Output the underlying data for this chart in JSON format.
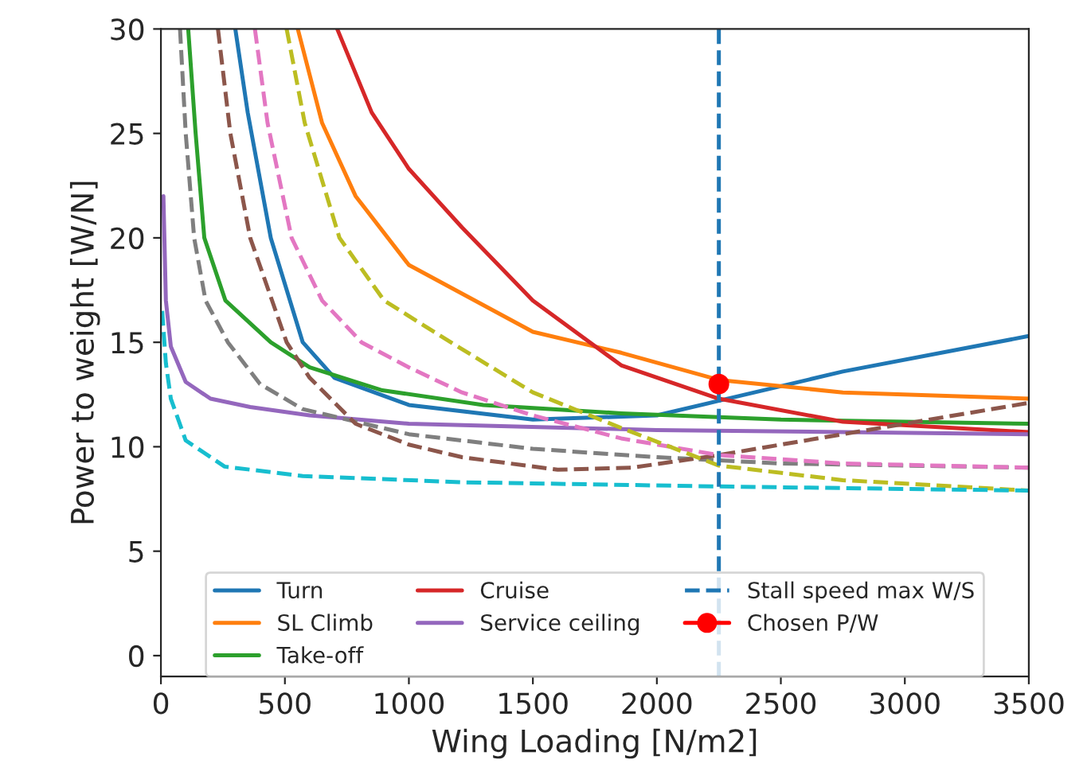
{
  "chart_data": {
    "type": "line",
    "xlabel": "Wing Loading [N/m2]",
    "ylabel": "Power to weight [W/N]",
    "xlim": [
      0,
      3500
    ],
    "xticks": [
      0,
      500,
      1000,
      1500,
      2000,
      2500,
      3000,
      3500
    ],
    "ylim": [
      -1,
      30
    ],
    "yticks": [
      0,
      5,
      10,
      15,
      20,
      25,
      30
    ],
    "grid": false,
    "legend": "bottom",
    "marker": "none",
    "series": [
      {
        "name": "Turn",
        "color": "#1f77b4",
        "line_style": "solid",
        "x": [
          300,
          350,
          443,
          572,
          700,
          1000,
          1500,
          2000,
          2250,
          2750,
          3500
        ],
        "values": [
          30,
          26,
          20,
          15,
          13.3,
          12,
          11.3,
          11.5,
          12.2,
          13.6,
          15.3
        ]
      },
      {
        "name": "SL Climb",
        "color": "#ff7f0e",
        "line_style": "solid",
        "x": [
          552,
          650,
          785,
          1000,
          1500,
          1856,
          2250,
          2750,
          3500
        ],
        "values": [
          30,
          25.5,
          22,
          18.7,
          15.5,
          14.5,
          13.2,
          12.6,
          12.3
        ]
      },
      {
        "name": "Take-off",
        "color": "#2ca02c",
        "line_style": "solid",
        "x": [
          110,
          140,
          175,
          260,
          443,
          600,
          893,
          1300,
          1856,
          2500,
          3500
        ],
        "values": [
          30,
          25,
          20,
          17,
          15,
          13.8,
          12.7,
          12,
          11.6,
          11.3,
          11.1
        ]
      },
      {
        "name": "Cruise",
        "color": "#d62728",
        "line_style": "solid",
        "x": [
          711,
          850,
          1000,
          1214,
          1500,
          1856,
          2250,
          2750,
          3500
        ],
        "values": [
          30,
          26,
          23.3,
          20.5,
          17,
          13.9,
          12.3,
          11.2,
          10.7
        ]
      },
      {
        "name": "Service ceiling",
        "color": "#9467bd",
        "line_style": "solid",
        "x": [
          10,
          20,
          40,
          100,
          200,
          360,
          600,
          1000,
          2000,
          3500
        ],
        "values": [
          22,
          17,
          14.8,
          13.1,
          12.3,
          11.9,
          11.5,
          11.1,
          10.8,
          10.6
        ]
      },
      {
        "color": "#7f7f7f",
        "line_style": "dashed",
        "x": [
          77,
          100,
          134,
          180,
          270,
          400,
          572,
          1000,
          1500,
          2000,
          2500,
          3500
        ],
        "values": [
          30,
          25,
          20,
          17,
          15,
          13,
          11.8,
          10.6,
          9.9,
          9.5,
          9.2,
          9.0
        ]
      },
      {
        "color": "#8c564b",
        "line_style": "dashed",
        "x": [
          230,
          280,
          360,
          507,
          600,
          785,
          1000,
          1214,
          1600,
          1900,
          2250,
          2750,
          3500
        ],
        "values": [
          30,
          25,
          20,
          15,
          13.3,
          11.1,
          10.1,
          9.5,
          8.9,
          9.0,
          9.6,
          10.6,
          12.1
        ]
      },
      {
        "color": "#e377c2",
        "line_style": "dashed",
        "x": [
          379,
          430,
          527,
          650,
          809,
          1000,
          1214,
          1500,
          1856,
          2250,
          2750,
          3500
        ],
        "values": [
          30,
          25.5,
          20,
          17,
          15,
          13.8,
          12.6,
          11.5,
          10.4,
          9.6,
          9.2,
          9.0
        ]
      },
      {
        "color": "#bcbd22",
        "line_style": "dashed",
        "x": [
          507,
          580,
          720,
          900,
          1169,
          1500,
          1856,
          2250,
          2750,
          3500
        ],
        "values": [
          30,
          25.5,
          20,
          17,
          15,
          12.6,
          10.9,
          9.1,
          8.4,
          7.9
        ]
      },
      {
        "color": "#17becf",
        "line_style": "dashed",
        "x": [
          5,
          20,
          40,
          100,
          257,
          572,
          1214,
          2250,
          3500
        ],
        "values": [
          16.5,
          14,
          12.3,
          10.3,
          9.05,
          8.6,
          8.3,
          8.1,
          7.9
        ]
      },
      {
        "name": "Chosen P/W",
        "type": "scatter",
        "color": "#ff0000",
        "marker": "circle",
        "x": [
          2250
        ],
        "values": [
          13
        ]
      }
    ],
    "ref_lines": [
      {
        "axis": "x",
        "value": 2250,
        "label": "Stall speed max W/S",
        "color": "#1f77b4",
        "line_style": "dashed"
      }
    ]
  }
}
